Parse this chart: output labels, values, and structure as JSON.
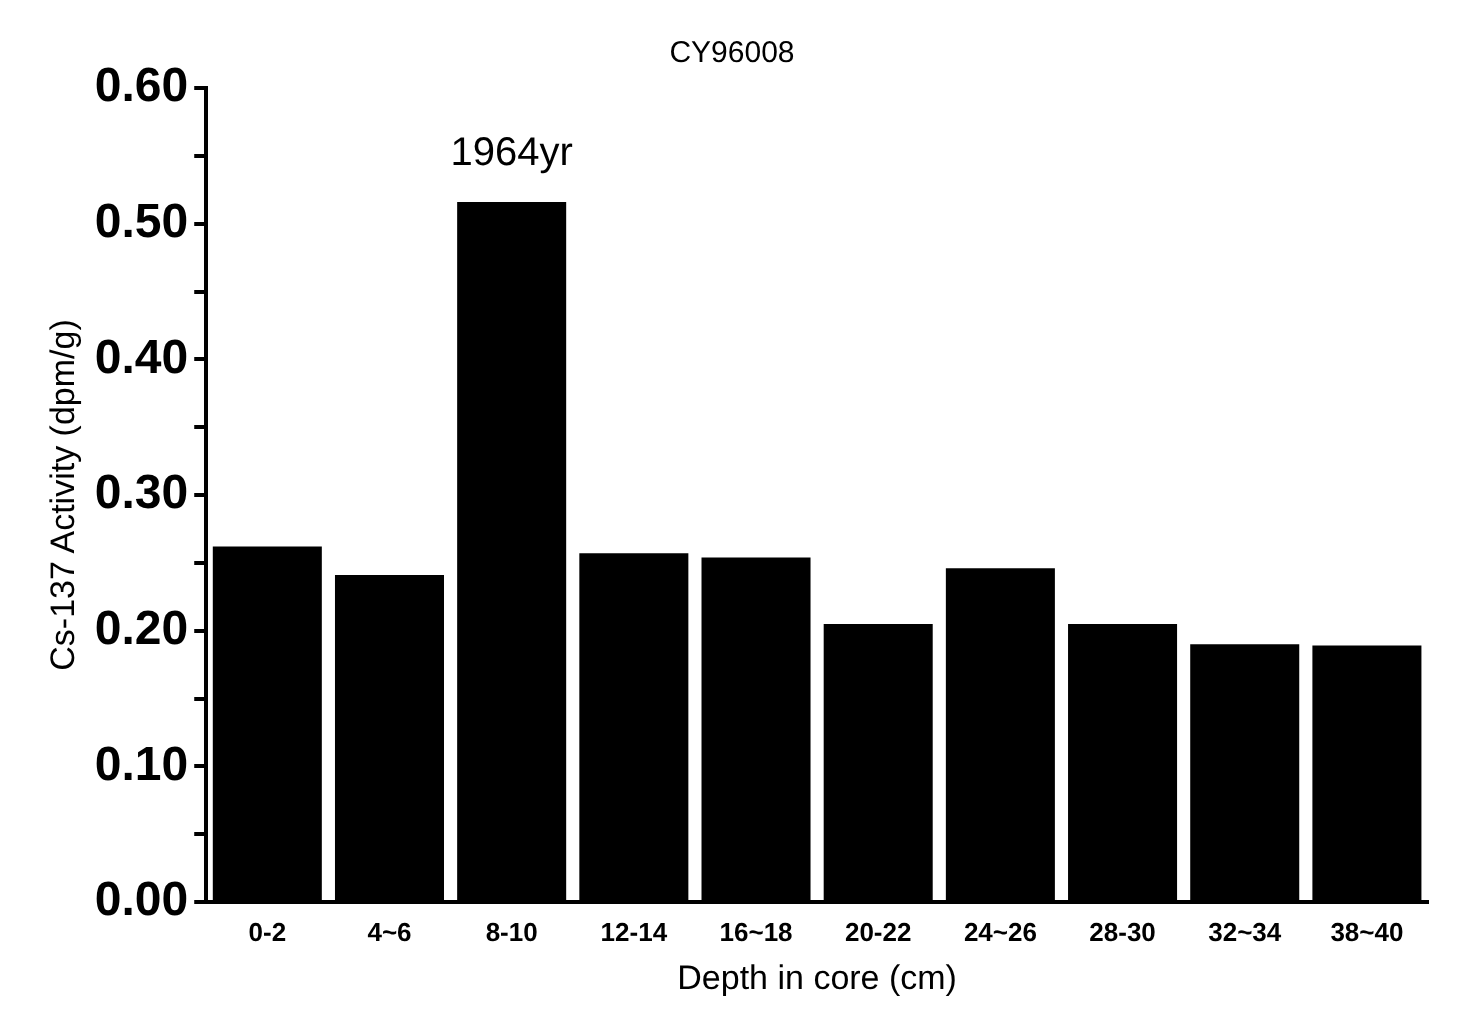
{
  "chart_data": {
    "type": "bar",
    "title": "CY96008",
    "xlabel": "Depth in core (cm)",
    "ylabel": "Cs-137 Activity (dpm/g)",
    "categories": [
      "0-2",
      "4~6",
      "8-10",
      "12-14",
      "16~18",
      "20-22",
      "24~26",
      "28-30",
      "32~34",
      "38~40"
    ],
    "values": [
      0.262,
      0.241,
      0.516,
      0.257,
      0.254,
      0.205,
      0.246,
      0.205,
      0.19,
      0.189
    ],
    "color": "#000000",
    "ylim": [
      0,
      0.6
    ],
    "yticks": [
      {
        "value": 0,
        "label": "0.00"
      },
      {
        "value": 0.05,
        "label": null
      },
      {
        "value": 0.1,
        "label": "0.10"
      },
      {
        "value": 0.15,
        "label": null
      },
      {
        "value": 0.2,
        "label": "0.20"
      },
      {
        "value": 0.25,
        "label": null
      },
      {
        "value": 0.3,
        "label": "0.30"
      },
      {
        "value": 0.35,
        "label": null
      },
      {
        "value": 0.4,
        "label": "0.40"
      },
      {
        "value": 0.45,
        "label": null
      },
      {
        "value": 0.5,
        "label": "0.50"
      },
      {
        "value": 0.55,
        "label": null
      },
      {
        "value": 0.6,
        "label": "0.60"
      }
    ],
    "annotations": [
      {
        "text": "1964yr",
        "x": "8-10",
        "y": 0.516
      }
    ],
    "grid": false,
    "legend": false
  }
}
